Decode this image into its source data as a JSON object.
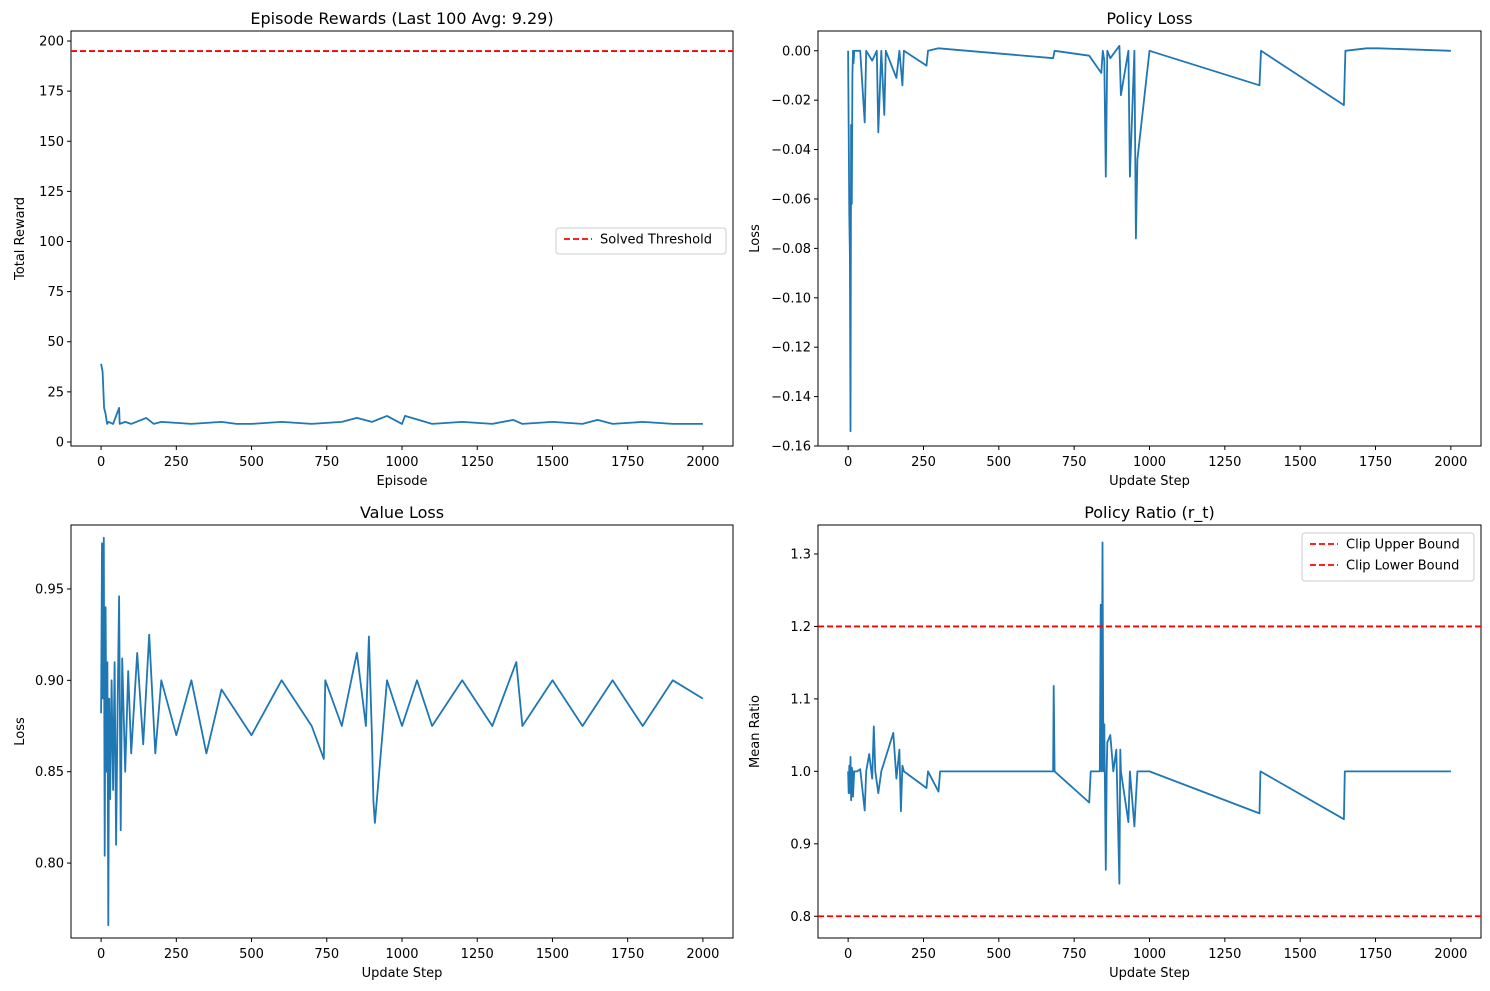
{
  "colors": {
    "line": "#1f77b4",
    "threshold": "#ff0000",
    "axes": "#000000"
  },
  "chart_data": [
    {
      "id": "rewards",
      "type": "line",
      "title": "Episode Rewards (Last 100 Avg: 9.29)",
      "xlabel": "Episode",
      "ylabel": "Total Reward",
      "xlim": [
        -100,
        2100
      ],
      "ylim": [
        -2,
        205
      ],
      "xticks": [
        0,
        250,
        500,
        750,
        1000,
        1250,
        1500,
        1750,
        2000
      ],
      "yticks": [
        0,
        25,
        50,
        75,
        100,
        125,
        150,
        175,
        200
      ],
      "ytick_labels": [
        "0",
        "25",
        "50",
        "75",
        "100",
        "125",
        "150",
        "175",
        "200"
      ],
      "hlines": [
        {
          "y": 195,
          "label": "Solved Threshold"
        }
      ],
      "legend": {
        "position": "center-right",
        "entries": [
          "Solved Threshold"
        ]
      },
      "series": [
        {
          "name": "Total Reward",
          "x": [
            0,
            5,
            10,
            15,
            20,
            25,
            40,
            60,
            62,
            80,
            100,
            150,
            175,
            200,
            300,
            400,
            450,
            500,
            600,
            700,
            800,
            850,
            900,
            950,
            1000,
            1010,
            1100,
            1200,
            1300,
            1370,
            1400,
            1500,
            1600,
            1650,
            1700,
            1800,
            1900,
            2000
          ],
          "values": [
            39,
            35,
            17,
            14,
            9,
            10,
            9,
            17,
            9,
            10,
            9,
            12,
            9,
            10,
            9,
            10,
            9,
            9,
            10,
            9,
            10,
            12,
            10,
            13,
            9,
            13,
            9,
            10,
            9,
            11,
            9,
            10,
            9,
            11,
            9,
            10,
            9,
            9
          ]
        }
      ]
    },
    {
      "id": "policy-loss",
      "type": "line",
      "title": "Policy Loss",
      "xlabel": "Update Step",
      "ylabel": "Loss",
      "xlim": [
        -100,
        2100
      ],
      "ylim": [
        -0.16,
        0.008
      ],
      "xticks": [
        0,
        250,
        500,
        750,
        1000,
        1250,
        1500,
        1750,
        2000
      ],
      "yticks": [
        0.0,
        -0.02,
        -0.04,
        -0.06,
        -0.08,
        -0.1,
        -0.12,
        -0.14,
        -0.16
      ],
      "ytick_labels": [
        "0.00",
        "−0.02",
        "−0.04",
        "−0.06",
        "−0.08",
        "−0.10",
        "−0.12",
        "−0.14",
        "−0.16"
      ],
      "series": [
        {
          "name": "Policy Loss",
          "x": [
            0,
            2,
            4,
            6,
            8,
            10,
            12,
            14,
            16,
            18,
            20,
            40,
            55,
            60,
            80,
            95,
            100,
            110,
            120,
            125,
            160,
            170,
            180,
            185,
            260,
            265,
            300,
            680,
            685,
            800,
            840,
            845,
            850,
            855,
            860,
            870,
            900,
            905,
            930,
            935,
            950,
            955,
            960,
            1000,
            1365,
            1370,
            1645,
            1650,
            1720,
            1760,
            2000
          ],
          "values": [
            0,
            -0.033,
            -0.067,
            -0.083,
            -0.154,
            -0.03,
            -0.062,
            -0.01,
            0,
            -0.005,
            0,
            0,
            -0.029,
            0,
            -0.004,
            0,
            -0.033,
            0,
            -0.026,
            0,
            -0.011,
            0,
            -0.014,
            0,
            -0.006,
            0,
            0.001,
            -0.003,
            0,
            -0.002,
            -0.009,
            0,
            -0.004,
            -0.051,
            0,
            -0.003,
            0.002,
            -0.018,
            0,
            -0.051,
            0,
            -0.076,
            -0.044,
            0,
            -0.014,
            0,
            -0.022,
            0,
            0.001,
            0.001,
            0
          ]
        }
      ]
    },
    {
      "id": "value-loss",
      "type": "line",
      "title": "Value Loss",
      "xlabel": "Update Step",
      "ylabel": "Loss",
      "xlim": [
        -100,
        2100
      ],
      "ylim": [
        0.759,
        0.985
      ],
      "xticks": [
        0,
        250,
        500,
        750,
        1000,
        1250,
        1500,
        1750,
        2000
      ],
      "yticks": [
        0.8,
        0.85,
        0.9,
        0.95
      ],
      "ytick_labels": [
        "0.80",
        "0.85",
        "0.90",
        "0.95"
      ],
      "series": [
        {
          "name": "Value Loss",
          "x": [
            0,
            3,
            6,
            9,
            12,
            15,
            18,
            21,
            24,
            27,
            30,
            35,
            40,
            45,
            50,
            55,
            60,
            65,
            70,
            80,
            90,
            100,
            120,
            140,
            160,
            180,
            200,
            250,
            300,
            350,
            400,
            500,
            600,
            700,
            740,
            745,
            800,
            850,
            880,
            890,
            900,
            905,
            910,
            950,
            1000,
            1050,
            1100,
            1200,
            1300,
            1380,
            1400,
            1500,
            1600,
            1700,
            1800,
            1900,
            2000
          ],
          "values": [
            0.882,
            0.975,
            0.89,
            0.978,
            0.804,
            0.94,
            0.85,
            0.91,
            0.766,
            0.89,
            0.835,
            0.9,
            0.84,
            0.91,
            0.81,
            0.885,
            0.946,
            0.818,
            0.912,
            0.85,
            0.905,
            0.86,
            0.915,
            0.865,
            0.925,
            0.86,
            0.9,
            0.87,
            0.9,
            0.86,
            0.895,
            0.87,
            0.9,
            0.875,
            0.857,
            0.9,
            0.875,
            0.915,
            0.875,
            0.924,
            0.87,
            0.834,
            0.822,
            0.9,
            0.875,
            0.9,
            0.875,
            0.9,
            0.875,
            0.91,
            0.875,
            0.9,
            0.875,
            0.9,
            0.875,
            0.9,
            0.89
          ]
        }
      ]
    },
    {
      "id": "policy-ratio",
      "type": "line",
      "title": "Policy Ratio (r_t)",
      "xlabel": "Update Step",
      "ylabel": "Mean Ratio",
      "xlim": [
        -100,
        2100
      ],
      "ylim": [
        0.77,
        1.34
      ],
      "xticks": [
        0,
        250,
        500,
        750,
        1000,
        1250,
        1500,
        1750,
        2000
      ],
      "yticks": [
        0.8,
        0.9,
        1.0,
        1.1,
        1.2,
        1.3
      ],
      "ytick_labels": [
        "0.8",
        "0.9",
        "1.0",
        "1.1",
        "1.2",
        "1.3"
      ],
      "hlines": [
        {
          "y": 1.2,
          "label": "Clip Upper Bound"
        },
        {
          "y": 0.8,
          "label": "Clip Lower Bound"
        }
      ],
      "legend": {
        "position": "upper-right",
        "entries": [
          "Clip Upper Bound",
          "Clip Lower Bound"
        ]
      },
      "series": [
        {
          "name": "Mean Ratio",
          "x": [
            0,
            2,
            4,
            6,
            8,
            10,
            12,
            14,
            16,
            20,
            30,
            40,
            55,
            60,
            70,
            80,
            85,
            90,
            100,
            110,
            150,
            160,
            170,
            175,
            180,
            185,
            260,
            265,
            300,
            305,
            680,
            682,
            685,
            800,
            805,
            835,
            838,
            841,
            844,
            847,
            850,
            855,
            858,
            860,
            870,
            880,
            890,
            900,
            903,
            905,
            930,
            935,
            950,
            955,
            960,
            1000,
            1365,
            1368,
            1645,
            1648,
            2000
          ],
          "values": [
            1.0,
            0.97,
            1.008,
            0.97,
            1.02,
            0.96,
            1.005,
            1.0,
            0.965,
            1.0,
            1.0,
            1.003,
            0.946,
            1.0,
            1.024,
            0.99,
            1.062,
            1.0,
            0.97,
            1.0,
            1.053,
            0.99,
            1.03,
            0.945,
            1.008,
            1.0,
            0.977,
            1.0,
            0.972,
            1.0,
            1.0,
            1.118,
            1.0,
            0.957,
            1.0,
            1.0,
            1.23,
            1.0,
            1.316,
            1.0,
            1.065,
            0.864,
            1.0,
            1.04,
            1.05,
            1.0,
            1.03,
            0.845,
            1.03,
            1.0,
            0.93,
            1.0,
            0.924,
            0.963,
            1.0,
            1.0,
            0.942,
            1.0,
            0.934,
            1.0,
            1.0
          ]
        }
      ]
    }
  ]
}
